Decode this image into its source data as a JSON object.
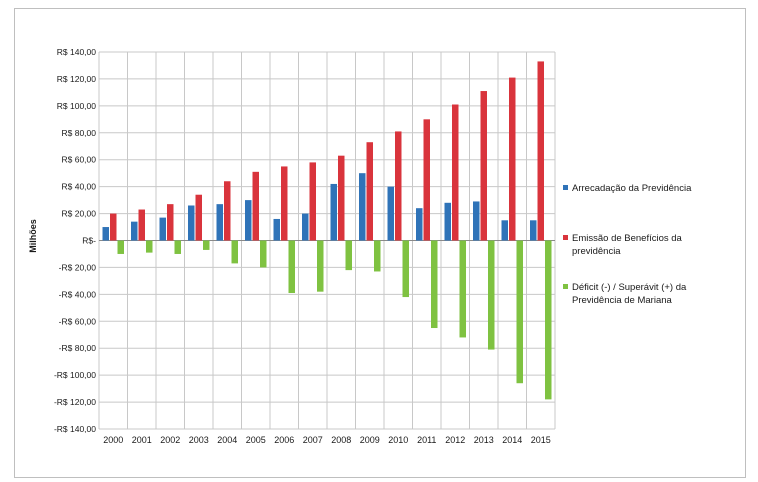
{
  "chart_data": {
    "type": "bar",
    "ylabel": "Milhões",
    "ylim": [
      -140,
      140
    ],
    "ytick_labels": [
      "R$ 140,00",
      "R$ 120,00",
      "R$ 100,00",
      "R$ 80,00",
      "R$ 60,00",
      "R$ 40,00",
      "R$ 20,00",
      "R$-",
      "-R$ 20,00",
      "-R$ 40,00",
      "-R$ 60,00",
      "-R$ 80,00",
      "-R$ 100,00",
      "-R$ 120,00",
      "-R$ 140,00"
    ],
    "ytick_values": [
      140,
      120,
      100,
      80,
      60,
      40,
      20,
      0,
      -20,
      -40,
      -60,
      -80,
      -100,
      -120,
      -140
    ],
    "categories": [
      "2000",
      "2001",
      "2002",
      "2003",
      "2004",
      "2005",
      "2006",
      "2007",
      "2008",
      "2009",
      "2010",
      "2011",
      "2012",
      "2013",
      "2014",
      "2015"
    ],
    "grid": true,
    "legend_position": "right",
    "series": [
      {
        "name": "Arrecadação da Previdência",
        "color": "#2f73b8",
        "values": [
          10,
          14,
          17,
          26,
          27,
          30,
          16,
          20,
          42,
          50,
          40,
          24,
          28,
          29,
          15,
          15
        ]
      },
      {
        "name": "Emissão de Benefícios da previdência",
        "color": "#d9343c",
        "values": [
          20,
          23,
          27,
          34,
          44,
          51,
          55,
          58,
          63,
          73,
          81,
          90,
          101,
          111,
          121,
          133
        ]
      },
      {
        "name": "Déficit (-) / Superávit (+) da Previdência de Mariana",
        "color": "#7fc241",
        "values": [
          -10,
          -9,
          -10,
          -7,
          -17,
          -20,
          -39,
          -38,
          -22,
          -23,
          -42,
          -65,
          -72,
          -81,
          -106,
          -118
        ]
      }
    ]
  }
}
